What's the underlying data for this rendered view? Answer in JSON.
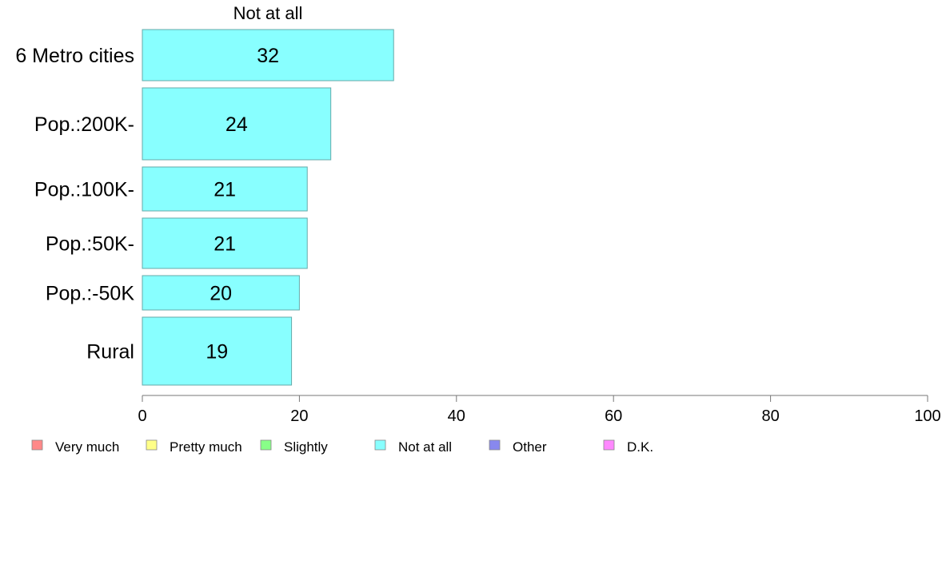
{
  "chart_data": {
    "type": "bar",
    "orientation": "horizontal",
    "series_title": "Not at all",
    "categories": [
      "6 Metro cities",
      "Pop.:200K-",
      "Pop.:100K-",
      "Pop.:50K-",
      "Pop.:-50K",
      "Rural"
    ],
    "values": [
      32,
      24,
      21,
      21,
      20,
      19
    ],
    "value_labels": [
      "32",
      "24",
      "21",
      "21",
      "20",
      "19"
    ],
    "xlim": [
      0,
      100
    ],
    "xticks": [
      0,
      20,
      40,
      60,
      80,
      100
    ],
    "xtick_labels": [
      "0",
      "20",
      "40",
      "60",
      "80",
      "100"
    ],
    "bar_color": "#88ffff",
    "grid": false,
    "legend_position": "bottom",
    "legend": [
      {
        "label": "Very much",
        "color": "#ff8888"
      },
      {
        "label": "Pretty much",
        "color": "#ffff88"
      },
      {
        "label": "Slightly",
        "color": "#88ff88"
      },
      {
        "label": "Not at all",
        "color": "#88ffff"
      },
      {
        "label": "Other",
        "color": "#8888ee"
      },
      {
        "label": "D.K.",
        "color": "#ff88ff"
      }
    ]
  }
}
